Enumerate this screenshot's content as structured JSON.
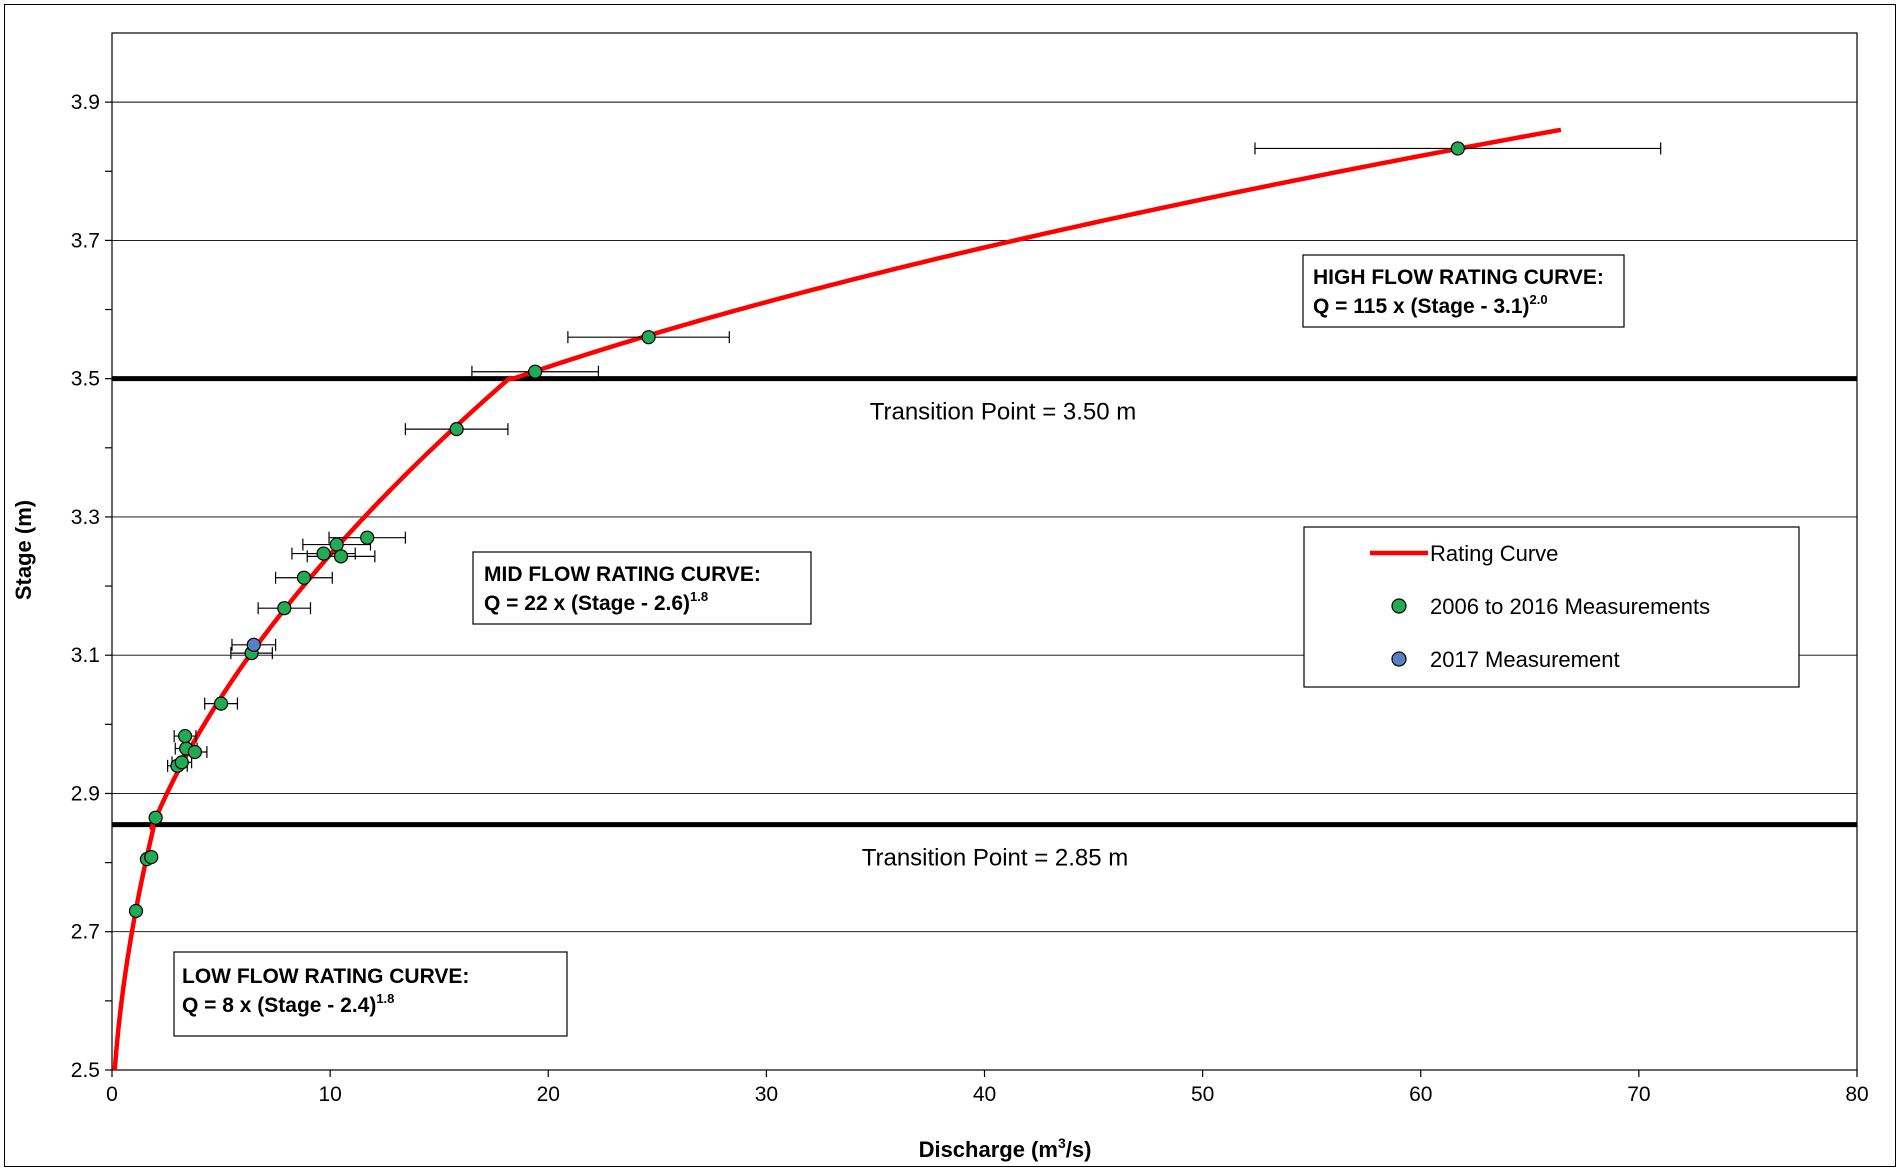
{
  "chart_data": {
    "type": "scatter",
    "xlabel_main": "Discharge (m",
    "xlabel_sup": "3",
    "xlabel_end": "/s)",
    "ylabel": "Stage (m)",
    "xlim": [
      0,
      80
    ],
    "ylim": [
      2.5,
      4.0
    ],
    "x_ticks": [
      "0",
      "10",
      "20",
      "30",
      "40",
      "50",
      "60",
      "70",
      "80"
    ],
    "y_ticks": [
      "2.5",
      "2.7",
      "2.9",
      "3.1",
      "3.3",
      "3.5",
      "3.7",
      "3.9"
    ],
    "grid": true,
    "legend_position": "right",
    "legend": [
      {
        "label": "Rating Curve",
        "kind": "line",
        "color": "#ff0000"
      },
      {
        "label": "2006 to 2016 Measurements",
        "kind": "marker",
        "color": "#22aa55"
      },
      {
        "label": "2017 Measurement",
        "kind": "marker",
        "color": "#5b7fc4"
      }
    ],
    "rating_curve": {
      "color": "#ff0000",
      "segments": [
        {
          "a": 8,
          "h0": 2.4,
          "b": 1.8,
          "stage_from": 2.5,
          "stage_to": 2.85
        },
        {
          "a": 22,
          "h0": 2.6,
          "b": 1.8,
          "stage_from": 2.85,
          "stage_to": 3.5
        },
        {
          "a": 115,
          "h0": 3.1,
          "b": 2.0,
          "stage_from": 3.5,
          "stage_to": 3.86
        }
      ]
    },
    "transitions": [
      {
        "stage": 3.5,
        "label": "Transition Point = 3.50 m"
      },
      {
        "stage": 2.855,
        "label": "Transition Point = 2.85 m"
      }
    ],
    "series": [
      {
        "name": "2006 to 2016 Measurements",
        "color": "#22aa55",
        "points": [
          {
            "x": 1.1,
            "y": 2.73
          },
          {
            "x": 1.6,
            "y": 2.805
          },
          {
            "x": 1.8,
            "y": 2.808
          },
          {
            "x": 2.0,
            "y": 2.865
          },
          {
            "x": 3.0,
            "y": 2.94,
            "xerr": 0.45
          },
          {
            "x": 3.2,
            "y": 2.945,
            "xerr": 0.45
          },
          {
            "x": 3.4,
            "y": 2.965,
            "xerr": 0.5
          },
          {
            "x": 3.35,
            "y": 2.983,
            "xerr": 0.5
          },
          {
            "x": 3.8,
            "y": 2.96,
            "xerr": 0.55
          },
          {
            "x": 5.0,
            "y": 3.03,
            "xerr": 0.75
          },
          {
            "x": 6.4,
            "y": 3.103,
            "xerr": 0.95
          },
          {
            "x": 7.9,
            "y": 3.168,
            "xerr": 1.2
          },
          {
            "x": 8.8,
            "y": 3.212,
            "xerr": 1.3
          },
          {
            "x": 9.7,
            "y": 3.247,
            "xerr": 1.45
          },
          {
            "x": 10.3,
            "y": 3.26,
            "xerr": 1.55
          },
          {
            "x": 10.5,
            "y": 3.243,
            "xerr": 1.55
          },
          {
            "x": 11.7,
            "y": 3.27,
            "xerr": 1.75
          },
          {
            "x": 15.8,
            "y": 3.427,
            "xerr": 2.35
          },
          {
            "x": 19.4,
            "y": 3.51,
            "xerr": 2.9
          },
          {
            "x": 24.6,
            "y": 3.56,
            "xerr": 3.7
          },
          {
            "x": 61.7,
            "y": 3.833,
            "xerr": 9.3
          }
        ]
      },
      {
        "name": "2017 Measurement",
        "color": "#5b7fc4",
        "points": [
          {
            "x": 6.5,
            "y": 3.115,
            "xerr": 1.0
          }
        ]
      }
    ],
    "annotations": [
      {
        "id": "high",
        "line1": "HIGH FLOW RATING CURVE:",
        "line2": "Q = 115 x (Stage - 3.1)",
        "sup": "2.0"
      },
      {
        "id": "mid",
        "line1": "MID FLOW RATING CURVE:",
        "line2": "Q = 22 x (Stage - 2.6)",
        "sup": "1.8"
      },
      {
        "id": "low",
        "line1": "LOW FLOW RATING CURVE:",
        "line2": "Q = 8 x (Stage - 2.4)",
        "sup": "1.8"
      }
    ]
  }
}
